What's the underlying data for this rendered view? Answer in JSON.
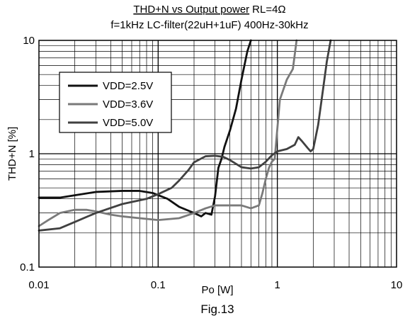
{
  "chart_data": {
    "type": "line",
    "title_main": "THD+N vs Output power",
    "title_rl": "RL=4Ω",
    "subtitle": "f=1kHz LC-filter(22uH+1uF) 400Hz-30kHz",
    "xlabel": "Po [W]",
    "ylabel": "THD+N [%]",
    "figure_label": "Fig.13",
    "x_scale": "log",
    "y_scale": "log",
    "xlim": [
      0.01,
      10
    ],
    "ylim": [
      0.1,
      10
    ],
    "x_ticks": [
      "0.01",
      "0.1",
      "1",
      "10"
    ],
    "y_ticks": [
      "0.1",
      "1",
      "10"
    ],
    "grid": true,
    "legend_position": "top-left",
    "series": [
      {
        "name": "VDD=2.5V",
        "color": "#111111",
        "x": [
          0.01,
          0.015,
          0.02,
          0.03,
          0.05,
          0.07,
          0.09,
          0.12,
          0.15,
          0.2,
          0.23,
          0.25,
          0.28,
          0.3,
          0.32,
          0.34,
          0.36,
          0.4,
          0.45,
          0.5,
          0.56,
          0.6
        ],
        "y": [
          0.41,
          0.41,
          0.43,
          0.46,
          0.47,
          0.47,
          0.45,
          0.4,
          0.34,
          0.3,
          0.28,
          0.3,
          0.29,
          0.42,
          0.75,
          0.9,
          1.15,
          1.6,
          2.5,
          4.5,
          8.0,
          10.0
        ]
      },
      {
        "name": "VDD=3.6V",
        "color": "#7a7a7a",
        "x": [
          0.01,
          0.012,
          0.015,
          0.02,
          0.025,
          0.03,
          0.04,
          0.05,
          0.07,
          0.1,
          0.15,
          0.2,
          0.25,
          0.3,
          0.35,
          0.4,
          0.5,
          0.6,
          0.7,
          0.75,
          0.8,
          0.85,
          0.9,
          0.95,
          1.05,
          1.2,
          1.35,
          1.45
        ],
        "y": [
          0.23,
          0.26,
          0.3,
          0.32,
          0.32,
          0.31,
          0.29,
          0.28,
          0.27,
          0.26,
          0.27,
          0.3,
          0.33,
          0.35,
          0.35,
          0.35,
          0.35,
          0.33,
          0.35,
          0.45,
          0.6,
          0.75,
          0.85,
          0.9,
          3.0,
          4.5,
          5.6,
          10.0
        ]
      },
      {
        "name": "VDD=5.0V",
        "color": "#404040",
        "x": [
          0.01,
          0.015,
          0.02,
          0.03,
          0.05,
          0.08,
          0.1,
          0.13,
          0.15,
          0.18,
          0.2,
          0.25,
          0.3,
          0.35,
          0.4,
          0.5,
          0.6,
          0.7,
          0.8,
          0.9,
          1.0,
          1.2,
          1.4,
          1.5,
          1.6,
          1.8,
          1.9,
          2.0,
          2.2,
          2.4,
          2.6,
          2.8
        ],
        "y": [
          0.21,
          0.22,
          0.25,
          0.3,
          0.36,
          0.4,
          0.44,
          0.5,
          0.58,
          0.72,
          0.84,
          0.95,
          0.96,
          0.94,
          0.88,
          0.76,
          0.74,
          0.76,
          0.85,
          0.97,
          1.05,
          1.1,
          1.2,
          1.4,
          1.3,
          1.12,
          1.05,
          1.1,
          1.8,
          3.5,
          6.5,
          10.0
        ]
      }
    ]
  }
}
